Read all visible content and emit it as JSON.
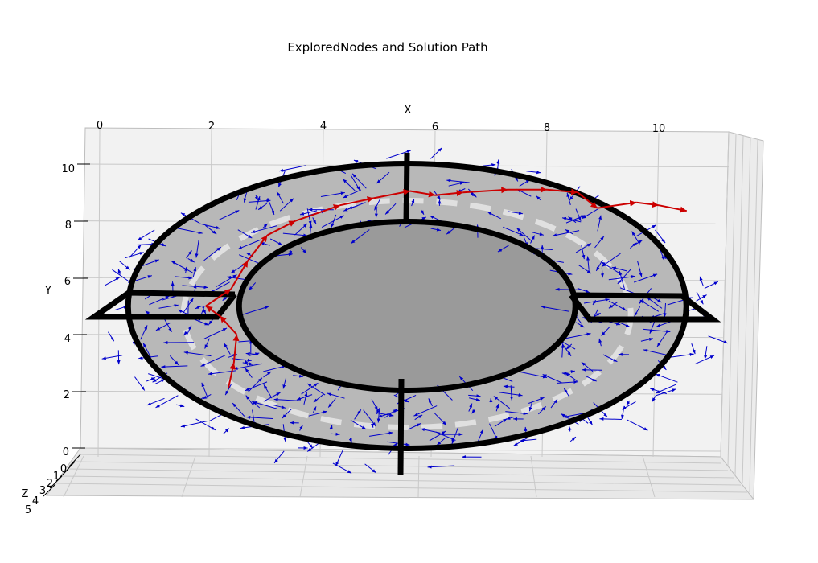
{
  "chart_data": {
    "type": "quiver3d",
    "title": "ExploredNodes and Solution Path",
    "xlabel": "X",
    "ylabel": "Y",
    "zlabel": "Z",
    "x_ticks": [
      "0",
      "2",
      "4",
      "6",
      "8",
      "10"
    ],
    "y_ticks": [
      "0",
      "2",
      "4",
      "6",
      "8",
      "10"
    ],
    "z_ticks": [
      "0",
      "1",
      "2",
      "3",
      "4",
      "5"
    ],
    "xlim": [
      0,
      11
    ],
    "ylim": [
      0,
      11
    ],
    "zlim": [
      0,
      5
    ],
    "grid": true,
    "colors": {
      "explored": "#0000cc",
      "path": "#cc0000",
      "track_fill": "#b8b8b8",
      "inner_fill": "#9a9a9a",
      "centerline": "#e0e0e0",
      "pane": "#f2f2f2",
      "wall": "#000000"
    },
    "track": {
      "center": [
        5.5,
        5.0
      ],
      "outer_radii": [
        10.0,
        5.0
      ],
      "inner_radii": [
        6.0,
        3.0
      ],
      "centerline_radii": [
        8.0,
        4.0
      ]
    },
    "solution_path": [
      [
        2.3,
        2.1
      ],
      [
        2.4,
        3.0
      ],
      [
        2.45,
        4.0
      ],
      [
        2.15,
        4.65
      ],
      [
        1.9,
        5.0
      ],
      [
        2.35,
        5.6
      ],
      [
        2.65,
        6.6
      ],
      [
        3.0,
        7.5
      ],
      [
        3.5,
        8.0
      ],
      [
        4.3,
        8.55
      ],
      [
        4.9,
        8.8
      ],
      [
        5.55,
        9.05
      ],
      [
        6.0,
        8.9
      ],
      [
        6.5,
        9.0
      ],
      [
        7.3,
        9.1
      ],
      [
        8.0,
        9.1
      ],
      [
        8.55,
        9.0
      ],
      [
        8.9,
        8.45
      ],
      [
        9.6,
        8.65
      ],
      [
        10.0,
        8.55
      ],
      [
        10.5,
        8.35
      ]
    ],
    "explored_count": 400
  }
}
